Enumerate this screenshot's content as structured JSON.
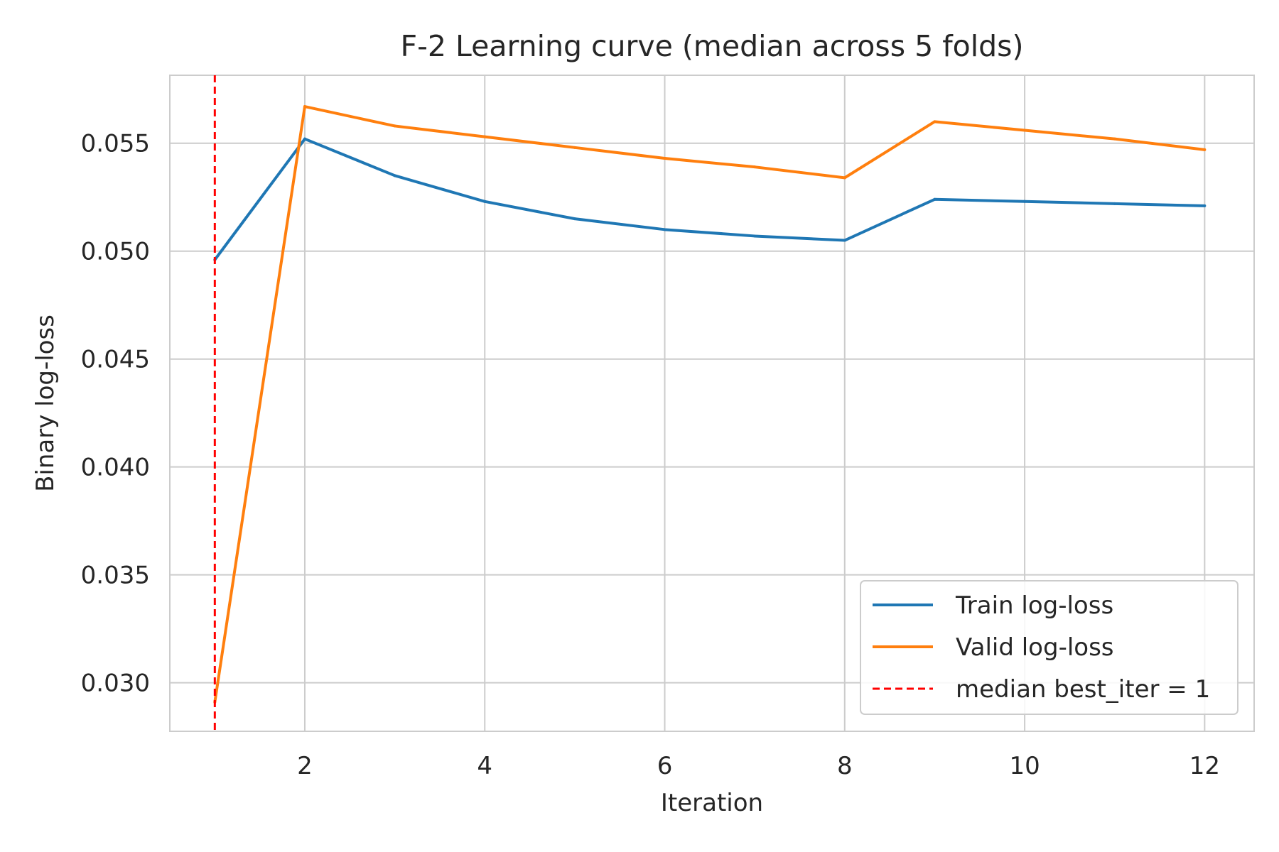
{
  "chart_data": {
    "type": "line",
    "title": "F-2  Learning curve  (median across 5 folds)",
    "xlabel": "Iteration",
    "ylabel": "Binary log-loss",
    "xlim": [
      0.5,
      12.55
    ],
    "ylim": [
      0.02775,
      0.05815
    ],
    "xticks": [
      2,
      4,
      6,
      8,
      10,
      12
    ],
    "xtick_labels": [
      "2",
      "4",
      "6",
      "8",
      "10",
      "12"
    ],
    "yticks": [
      0.03,
      0.035,
      0.04,
      0.045,
      0.05,
      0.055
    ],
    "ytick_labels": [
      "0.030",
      "0.035",
      "0.040",
      "0.045",
      "0.050",
      "0.055"
    ],
    "grid": true,
    "legend_position": "lower-right",
    "x": [
      1,
      2,
      3,
      4,
      5,
      6,
      7,
      8,
      9,
      10,
      11,
      12
    ],
    "series": [
      {
        "name": "Train log-loss",
        "color": "#1f77b4",
        "style": "solid",
        "values": [
          0.0496,
          0.0552,
          0.0535,
          0.0523,
          0.0515,
          0.051,
          0.0507,
          0.0505,
          0.0524,
          0.0523,
          0.0522,
          0.0521
        ]
      },
      {
        "name": "Valid log-loss",
        "color": "#ff7f0e",
        "style": "solid",
        "values": [
          0.0291,
          0.0567,
          0.0558,
          0.0553,
          0.0548,
          0.0543,
          0.0539,
          0.0534,
          0.056,
          0.0556,
          0.0552,
          0.0547
        ]
      }
    ],
    "vlines": [
      {
        "name": "median best_iter = 1",
        "x": 1,
        "color": "#ff0000",
        "style": "dashed"
      }
    ]
  }
}
